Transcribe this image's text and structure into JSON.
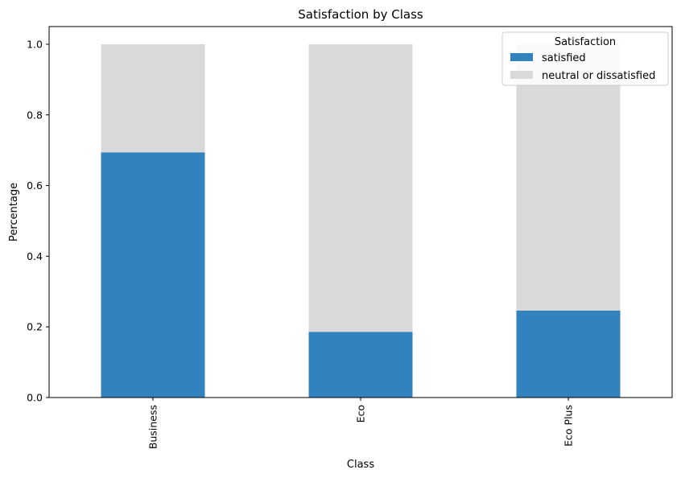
{
  "chart_data": {
    "type": "bar",
    "stacked": true,
    "title": "Satisfaction by Class",
    "xlabel": "Class",
    "ylabel": "Percentage",
    "categories": [
      "Business",
      "Eco",
      "Eco Plus"
    ],
    "series": [
      {
        "name": "satisfied",
        "color": "#3182bd",
        "values": [
          0.694,
          0.186,
          0.246
        ]
      },
      {
        "name": "neutral or dissatisfied",
        "color": "#d9d9d9",
        "values": [
          0.306,
          0.814,
          0.754
        ]
      }
    ],
    "ylim": [
      0,
      1.05
    ],
    "yticks": [
      0.0,
      0.2,
      0.4,
      0.6,
      0.8,
      1.0
    ],
    "ytick_labels": [
      "0.0",
      "0.2",
      "0.4",
      "0.6",
      "0.8",
      "1.0"
    ],
    "grid": false,
    "legend": {
      "title": "Satisfaction",
      "placement": "top-right"
    }
  }
}
